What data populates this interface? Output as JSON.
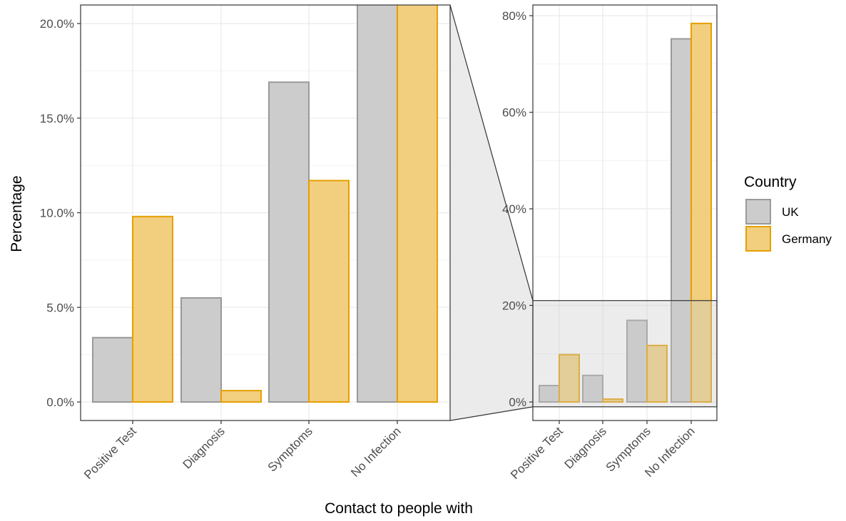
{
  "chart_data": {
    "type": "bar",
    "categories": [
      "Positive Test",
      "Diagnosis",
      "Symptoms",
      "No Infection"
    ],
    "series": [
      {
        "name": "UK",
        "values": [
          3.4,
          5.5,
          16.9,
          75.2
        ]
      },
      {
        "name": "Germany",
        "values": [
          9.8,
          0.6,
          11.7,
          78.4
        ]
      }
    ],
    "xlabel": "Contact to people with",
    "ylabel": "Percentage",
    "legend": {
      "title": "Country",
      "position": "right"
    },
    "grid": true,
    "colors": {
      "UK": "#cccccc",
      "UK_border": "#999999",
      "Germany": "#f0cc78",
      "Germany_border": "#e69f00"
    },
    "panels": [
      {
        "name": "zoomed",
        "ylim": [
          0,
          20.0
        ],
        "yticks": [
          0,
          5,
          10,
          15,
          20
        ],
        "ytick_labels": [
          "0.0%",
          "5.0%",
          "10.0%",
          "15.0%",
          "20.0%"
        ]
      },
      {
        "name": "full",
        "ylim": [
          0,
          80
        ],
        "yticks": [
          0,
          20,
          40,
          60,
          80
        ],
        "ytick_labels": [
          "0%",
          "20%",
          "40%",
          "60%",
          "80%"
        ]
      }
    ]
  }
}
